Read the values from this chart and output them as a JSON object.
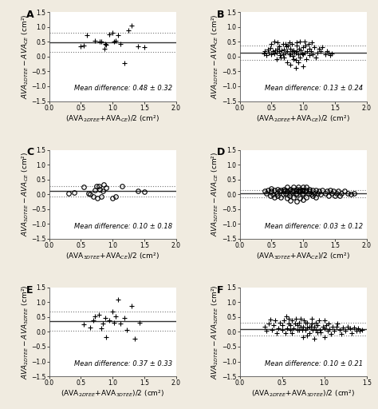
{
  "panels": [
    {
      "label": "A",
      "mean": 0.48,
      "sd": 0.32,
      "mean_text": "Mean difference: 0.48 ± 0.32",
      "xlabel": "(AVA$_{2DTEE}$+AVA$_{CE}$)/2 (cm²)",
      "ylabel": "$AVA_{2DTEE} - AVA_{CE}$ (cm²)",
      "xlim": [
        0.0,
        2.0
      ],
      "ylim": [
        -1.5,
        1.5
      ],
      "marker": "+",
      "marker_fill": "black",
      "x_data": [
        0.5,
        0.55,
        0.6,
        0.72,
        0.8,
        0.82,
        0.87,
        0.88,
        0.9,
        0.95,
        1.0,
        1.02,
        1.05,
        1.08,
        1.12,
        1.18,
        1.25,
        1.3,
        1.4,
        1.5
      ],
      "y_data": [
        0.35,
        0.38,
        0.72,
        0.55,
        0.5,
        0.52,
        0.28,
        0.42,
        0.4,
        0.75,
        0.8,
        0.5,
        0.55,
        0.72,
        0.42,
        -0.22,
        0.9,
        1.05,
        0.35,
        0.32
      ]
    },
    {
      "label": "B",
      "mean": 0.13,
      "sd": 0.24,
      "mean_text": "Mean difference: 0.13 ± 0.24",
      "xlabel": "(AVA$_{2DTEE}$+AVA$_{CE}$)/2 (cm²)",
      "ylabel": "$AVA_{2DTEE} - AVA_{CE}$ (cm²)",
      "xlim": [
        0.0,
        2.0
      ],
      "ylim": [
        -1.5,
        1.5
      ],
      "marker": "+",
      "marker_fill": "black",
      "x_data": [
        0.38,
        0.4,
        0.42,
        0.44,
        0.46,
        0.48,
        0.5,
        0.5,
        0.52,
        0.54,
        0.55,
        0.56,
        0.58,
        0.58,
        0.6,
        0.6,
        0.62,
        0.62,
        0.64,
        0.65,
        0.66,
        0.68,
        0.68,
        0.7,
        0.7,
        0.72,
        0.72,
        0.74,
        0.75,
        0.75,
        0.76,
        0.78,
        0.78,
        0.8,
        0.8,
        0.8,
        0.82,
        0.82,
        0.84,
        0.85,
        0.85,
        0.86,
        0.88,
        0.88,
        0.88,
        0.9,
        0.9,
        0.9,
        0.92,
        0.92,
        0.94,
        0.95,
        0.95,
        0.96,
        0.98,
        1.0,
        1.0,
        1.0,
        1.02,
        1.02,
        1.04,
        1.05,
        1.06,
        1.08,
        1.1,
        1.1,
        1.12,
        1.14,
        1.15,
        1.18,
        1.2,
        1.22,
        1.25,
        1.28,
        1.3,
        1.35,
        1.38,
        1.4,
        1.42,
        1.45
      ],
      "y_data": [
        0.1,
        0.18,
        0.05,
        0.25,
        0.12,
        0.3,
        0.08,
        0.42,
        0.18,
        0.52,
        0.1,
        0.22,
        0.14,
        -0.08,
        0.28,
        0.48,
        0.18,
        0.35,
        0.05,
        -0.02,
        0.22,
        0.44,
        0.08,
        -0.02,
        0.24,
        0.44,
        0.12,
        0.35,
        -0.18,
        0.18,
        0.38,
        0.08,
        0.48,
        -0.28,
        0.08,
        0.28,
        0.18,
        0.44,
        0.02,
        0.22,
        -0.08,
        0.12,
        -0.38,
        -0.12,
        0.14,
        0.38,
        0.18,
        0.48,
        -0.18,
        0.08,
        0.28,
        0.52,
        -0.02,
        0.22,
        0.1,
        -0.32,
        0.08,
        0.32,
        0.52,
        0.12,
        0.38,
        -0.08,
        0.18,
        0.42,
        0.04,
        0.28,
        0.18,
        0.48,
        0.08,
        0.32,
        -0.02,
        0.14,
        0.28,
        0.18,
        0.32,
        0.08,
        0.18,
        0.12,
        0.04,
        0.1
      ]
    },
    {
      "label": "C",
      "mean": 0.1,
      "sd": 0.18,
      "mean_text": "Mean difference: 0.10 ± 0.18",
      "xlabel": "(AVA$_{3DTEE}$+AVA$_{CE}$)/2 (cm²)",
      "ylabel": "$AVA_{3DTEE} - AVA_{CE}$ (cm²)",
      "xlim": [
        0.0,
        2.0
      ],
      "ylim": [
        -1.5,
        1.5
      ],
      "marker": "o",
      "marker_fill": "none",
      "x_data": [
        0.3,
        0.4,
        0.55,
        0.62,
        0.65,
        0.7,
        0.72,
        0.75,
        0.76,
        0.78,
        0.8,
        0.82,
        0.84,
        0.86,
        0.9,
        1.0,
        1.05,
        1.15,
        1.4,
        1.5
      ],
      "y_data": [
        0.02,
        0.06,
        0.24,
        0.02,
        0.0,
        -0.08,
        0.14,
        0.28,
        -0.12,
        0.28,
        0.18,
        -0.08,
        0.1,
        0.32,
        0.22,
        -0.14,
        -0.08,
        0.28,
        0.12,
        0.08
      ]
    },
    {
      "label": "D",
      "mean": 0.03,
      "sd": 0.12,
      "mean_text": "Mean difference: 0.03 ± 0.12",
      "xlabel": "(AVA$_{3DTEE}$+AVA$_{CE}$)/2 (cm²)",
      "ylabel": "$AVA_{3DTEE} - AVA_{CE}$ (cm²)",
      "xlim": [
        0.0,
        2.0
      ],
      "ylim": [
        -1.5,
        1.5
      ],
      "marker": "o",
      "marker_fill": "none",
      "x_data": [
        0.4,
        0.42,
        0.45,
        0.48,
        0.5,
        0.5,
        0.52,
        0.55,
        0.55,
        0.58,
        0.6,
        0.6,
        0.62,
        0.65,
        0.65,
        0.68,
        0.7,
        0.7,
        0.72,
        0.72,
        0.75,
        0.75,
        0.75,
        0.78,
        0.78,
        0.8,
        0.8,
        0.8,
        0.82,
        0.85,
        0.85,
        0.85,
        0.88,
        0.88,
        0.9,
        0.9,
        0.9,
        0.92,
        0.92,
        0.95,
        0.95,
        0.95,
        0.98,
        0.98,
        1.0,
        1.0,
        1.0,
        1.0,
        1.02,
        1.05,
        1.05,
        1.05,
        1.08,
        1.1,
        1.1,
        1.12,
        1.15,
        1.15,
        1.18,
        1.2,
        1.2,
        1.22,
        1.25,
        1.28,
        1.3,
        1.35,
        1.38,
        1.4,
        1.42,
        1.45,
        1.48,
        1.5,
        1.52,
        1.55,
        1.58,
        1.6,
        1.65,
        1.7,
        1.75,
        1.8
      ],
      "y_data": [
        0.1,
        0.04,
        0.14,
        -0.04,
        0.1,
        0.2,
        0.0,
        0.14,
        -0.1,
        0.04,
        0.18,
        -0.04,
        0.1,
        0.14,
        -0.1,
        0.0,
        0.1,
        0.18,
        0.04,
        0.14,
        -0.14,
        0.1,
        0.24,
        -0.04,
        0.14,
        -0.2,
        0.04,
        0.18,
        0.1,
        -0.1,
        0.14,
        0.24,
        0.0,
        0.1,
        -0.24,
        0.04,
        0.18,
        0.1,
        0.24,
        -0.14,
        0.1,
        0.18,
        0.0,
        0.14,
        -0.18,
        0.04,
        0.14,
        0.24,
        0.1,
        -0.1,
        0.14,
        0.24,
        0.04,
        0.1,
        0.18,
        0.0,
        -0.04,
        0.14,
        0.04,
        -0.1,
        0.14,
        0.04,
        0.1,
        0.0,
        0.14,
        0.04,
        0.1,
        -0.04,
        0.14,
        0.04,
        0.1,
        -0.04,
        0.04,
        0.1,
        -0.04,
        0.04,
        0.1,
        0.04,
        0.0,
        0.04
      ]
    },
    {
      "label": "E",
      "mean": 0.37,
      "sd": 0.33,
      "mean_text": "Mean difference: 0.37 ± 0.33",
      "xlabel": "(AVA$_{2DTEE}$+AVA$_{3DTEE}$)/2 (cm²)",
      "ylabel": "$AVA_{2DTEE} - AVA_{3DTEE}$ (cm²)",
      "xlim": [
        0.0,
        2.0
      ],
      "ylim": [
        -1.5,
        1.5
      ],
      "marker": "+",
      "marker_fill": "black",
      "x_data": [
        0.55,
        0.65,
        0.7,
        0.72,
        0.78,
        0.82,
        0.85,
        0.88,
        0.9,
        0.95,
        1.0,
        1.02,
        1.05,
        1.08,
        1.12,
        1.18,
        1.22,
        1.3,
        1.35,
        1.42
      ],
      "y_data": [
        0.25,
        0.15,
        0.4,
        0.52,
        0.58,
        0.12,
        0.28,
        0.48,
        -0.18,
        0.38,
        0.7,
        0.32,
        0.52,
        1.08,
        0.28,
        0.48,
        0.08,
        0.88,
        -0.22,
        0.32
      ]
    },
    {
      "label": "F",
      "mean": 0.1,
      "sd": 0.21,
      "mean_text": "Mean difference: 0.10 ± 0.21",
      "xlabel": "(AVA$_{2DTEE}$+AVA$_{3DTEE}$)/2 (cm²)",
      "ylabel": "$AVA_{2DTEE} - AVA_{3DTEE}$ (cm²)",
      "xlim": [
        0.0,
        1.5
      ],
      "ylim": [
        -1.5,
        1.5
      ],
      "marker": "+",
      "marker_fill": "black",
      "x_data": [
        0.3,
        0.32,
        0.34,
        0.36,
        0.38,
        0.4,
        0.42,
        0.44,
        0.46,
        0.48,
        0.5,
        0.5,
        0.52,
        0.54,
        0.55,
        0.56,
        0.58,
        0.58,
        0.6,
        0.6,
        0.62,
        0.62,
        0.64,
        0.65,
        0.66,
        0.68,
        0.68,
        0.7,
        0.7,
        0.72,
        0.72,
        0.74,
        0.75,
        0.75,
        0.76,
        0.78,
        0.78,
        0.8,
        0.8,
        0.8,
        0.82,
        0.82,
        0.84,
        0.85,
        0.85,
        0.86,
        0.88,
        0.88,
        0.9,
        0.9,
        0.92,
        0.92,
        0.94,
        0.95,
        0.96,
        0.98,
        1.0,
        1.0,
        1.0,
        1.02,
        1.04,
        1.05,
        1.06,
        1.08,
        1.1,
        1.12,
        1.14,
        1.15,
        1.18,
        1.2,
        1.22,
        1.25,
        1.28,
        1.3,
        1.32,
        1.35,
        1.38,
        1.4,
        1.42,
        1.45
      ],
      "y_data": [
        0.18,
        0.04,
        0.28,
        0.42,
        0.08,
        0.22,
        0.38,
        -0.04,
        0.12,
        0.32,
        0.08,
        0.22,
        0.38,
        -0.04,
        0.52,
        0.12,
        0.28,
        0.44,
        0.08,
        0.22,
        0.38,
        -0.04,
        0.12,
        0.28,
        0.44,
        0.08,
        0.22,
        0.08,
        0.32,
        0.18,
        0.44,
        0.08,
        -0.18,
        0.18,
        0.38,
        0.08,
        0.32,
        -0.12,
        0.14,
        0.32,
        0.18,
        -0.04,
        0.18,
        0.28,
        0.44,
        0.08,
        -0.22,
        0.18,
        0.08,
        0.32,
        -0.02,
        0.24,
        0.38,
        0.08,
        -0.02,
        0.18,
        -0.18,
        0.12,
        0.38,
        0.22,
        0.04,
        0.28,
        0.1,
        -0.08,
        0.18,
        0.05,
        0.18,
        0.28,
        0.08,
        -0.08,
        0.14,
        0.05,
        0.18,
        0.12,
        -0.05,
        0.14,
        0.05,
        0.12,
        0.05,
        0.08
      ]
    }
  ],
  "bg_color": "#ffffff",
  "outer_bg": "#f0ebe0",
  "line_color_mean": "#333333",
  "line_color_sd": "#777777",
  "text_fontsize": 6.0,
  "label_fontsize": 6.5,
  "tick_fontsize": 5.5,
  "marker_size": 4
}
